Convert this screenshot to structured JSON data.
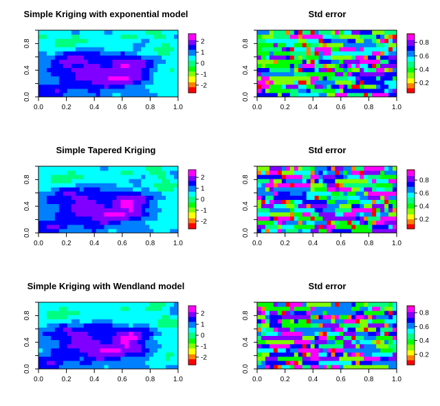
{
  "figure": {
    "rows": 3,
    "cols": 2,
    "palette": [
      "#ff0000",
      "#ff8000",
      "#ffff00",
      "#80ff00",
      "#00ff00",
      "#00ff80",
      "#00ffff",
      "#0080ff",
      "#0000ff",
      "#8000ff",
      "#ff00ff",
      "#ff0080"
    ]
  },
  "chart_data": [
    {
      "type": "heatmap",
      "title": "Simple Kriging with  exponential model",
      "xlim": [
        0,
        1
      ],
      "ylim": [
        0,
        1
      ],
      "xticks": [
        "0.0",
        "0.2",
        "0.4",
        "0.6",
        "0.8",
        "1.0"
      ],
      "yticks": [
        "0.0",
        "0.4",
        "0.8"
      ],
      "legend": {
        "range": [
          -2.7,
          2.7
        ],
        "ticks": [
          "2",
          "1",
          "0",
          "-1",
          "-2"
        ],
        "tick_values": [
          2,
          1,
          0,
          -1,
          -2
        ]
      },
      "field": "prediction",
      "variant": 0
    },
    {
      "type": "heatmap",
      "title": "Std error",
      "xlim": [
        0,
        1
      ],
      "ylim": [
        0,
        1
      ],
      "xticks": [
        "0.0",
        "0.2",
        "0.4",
        "0.6",
        "0.8",
        "1.0"
      ],
      "yticks": [
        "0.2",
        "0.4",
        "0.6",
        "0.8"
      ],
      "yticks_axis": [
        "0.0",
        "0.4",
        "0.8"
      ],
      "legend": {
        "range": [
          0.05,
          0.93
        ],
        "ticks": [
          "0.8",
          "0.6",
          "0.4",
          "0.2"
        ],
        "tick_values": [
          0.8,
          0.6,
          0.4,
          0.2
        ]
      },
      "field": "stderror",
      "variant": 0
    },
    {
      "type": "heatmap",
      "title": "Simple Tapered Kriging",
      "xlim": [
        0,
        1
      ],
      "ylim": [
        0,
        1
      ],
      "xticks": [
        "0.0",
        "0.2",
        "0.4",
        "0.6",
        "0.8",
        "1.0"
      ],
      "yticks": [
        "0.0",
        "0.4",
        "0.8"
      ],
      "legend": {
        "range": [
          -2.7,
          2.7
        ],
        "ticks": [
          "2",
          "1",
          "0",
          "-1",
          "-2"
        ],
        "tick_values": [
          2,
          1,
          0,
          -1,
          -2
        ]
      },
      "field": "prediction",
      "variant": 1
    },
    {
      "type": "heatmap",
      "title": "Std error",
      "xlim": [
        0,
        1
      ],
      "ylim": [
        0,
        1
      ],
      "xticks": [
        "0.0",
        "0.2",
        "0.4",
        "0.6",
        "0.8",
        "1.0"
      ],
      "yticks": [
        "0.2",
        "0.4",
        "0.6",
        "0.8"
      ],
      "yticks_axis": [
        "0.0",
        "0.4",
        "0.8"
      ],
      "legend": {
        "range": [
          0.05,
          0.96
        ],
        "ticks": [
          "0.8",
          "0.6",
          "0.4",
          "0.2"
        ],
        "tick_values": [
          0.8,
          0.6,
          0.4,
          0.2
        ]
      },
      "field": "stderror",
      "variant": 1
    },
    {
      "type": "heatmap",
      "title": "Simple Kriging with Wendland model",
      "xlim": [
        0,
        1
      ],
      "ylim": [
        0,
        1
      ],
      "xticks": [
        "0.0",
        "0.2",
        "0.4",
        "0.6",
        "0.8",
        "1.0"
      ],
      "yticks": [
        "0.0",
        "0.4",
        "0.8"
      ],
      "legend": {
        "range": [
          -2.7,
          2.7
        ],
        "ticks": [
          "2",
          "1",
          "0",
          "-1",
          "-2"
        ],
        "tick_values": [
          2,
          1,
          0,
          -1,
          -2
        ]
      },
      "field": "prediction",
      "variant": 2
    },
    {
      "type": "heatmap",
      "title": "Std error",
      "xlim": [
        0,
        1
      ],
      "ylim": [
        0,
        1
      ],
      "xticks": [
        "0.0",
        "0.2",
        "0.4",
        "0.6",
        "0.8",
        "1.0"
      ],
      "yticks": [
        "0.2",
        "0.4",
        "0.6",
        "0.8"
      ],
      "yticks_axis": [
        "0.0",
        "0.4",
        "0.8"
      ],
      "legend": {
        "range": [
          0.05,
          0.9
        ],
        "ticks": [
          "0.8",
          "0.6",
          "0.4",
          "0.2"
        ],
        "tick_values": [
          0.8,
          0.6,
          0.4,
          0.2
        ]
      },
      "field": "stderror",
      "variant": 2
    }
  ]
}
